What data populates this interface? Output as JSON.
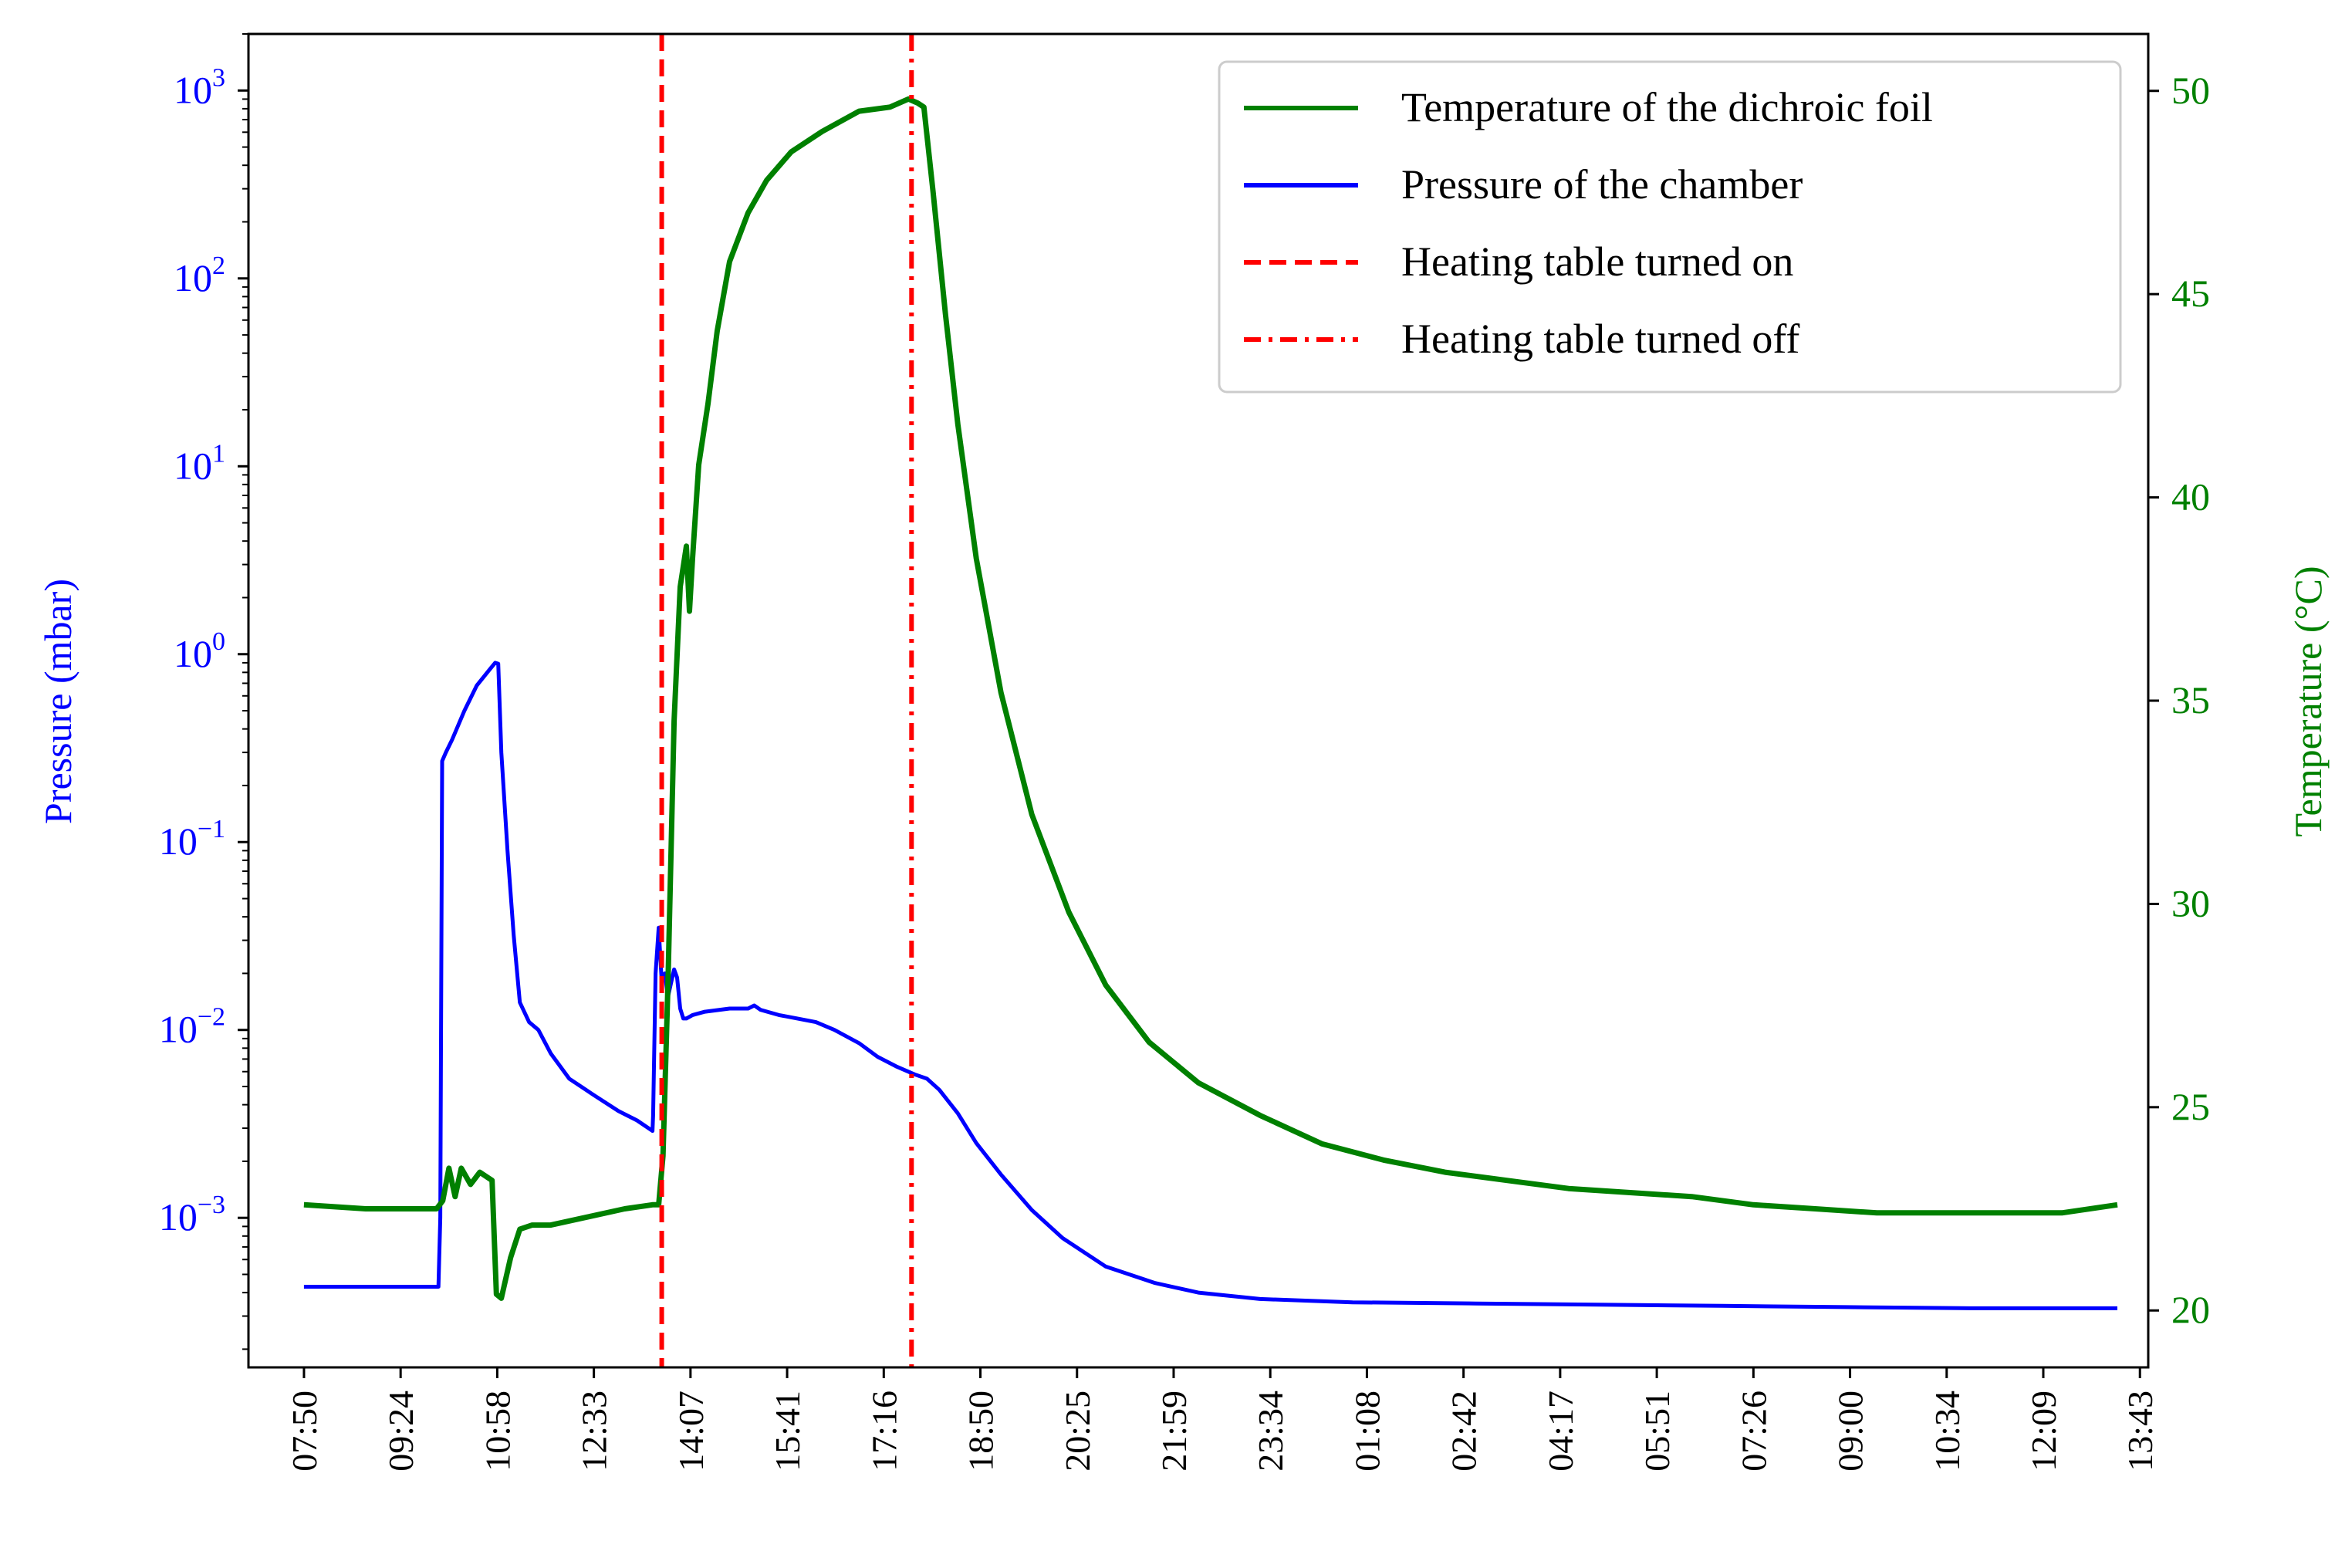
{
  "chart_data": {
    "type": "line",
    "title": "",
    "xlabel": "",
    "ylabel_left": "Pressure (mbar)",
    "ylabel_right": "Temperature (°C)",
    "x_unit": "hours since 07:50 on day 1",
    "x_tick_labels": [
      "07:50",
      "09:24",
      "10:58",
      "12:33",
      "14:07",
      "15:41",
      "17:16",
      "18:50",
      "20:25",
      "21:59",
      "23:34",
      "01:08",
      "02:42",
      "04:17",
      "05:51",
      "07:26",
      "09:00",
      "10:34",
      "12:09",
      "13:43"
    ],
    "x_tick_step_hours": 1.5666,
    "xlim": [
      -0.9,
      29.9
    ],
    "left_axis": {
      "scale": "log",
      "ylim": [
        0.00016,
        2000
      ],
      "ticks": [
        {
          "value": 0.001,
          "base": "10",
          "exp": "−3"
        },
        {
          "value": 0.01,
          "base": "10",
          "exp": "−2"
        },
        {
          "value": 0.1,
          "base": "10",
          "exp": "−1"
        },
        {
          "value": 1,
          "base": "10",
          "exp": "0"
        },
        {
          "value": 10,
          "base": "10",
          "exp": "1"
        },
        {
          "value": 100,
          "base": "10",
          "exp": "2"
        },
        {
          "value": 1000,
          "base": "10",
          "exp": "3"
        }
      ],
      "color": "#0000ff"
    },
    "right_axis": {
      "scale": "linear",
      "ylim": [
        18.6,
        51.4
      ],
      "ticks": [
        20,
        25,
        30,
        35,
        40,
        45,
        50
      ],
      "tick_labels": [
        "20",
        "25",
        "30",
        "35",
        "40",
        "45",
        "50"
      ],
      "color": "#008000"
    },
    "series": [
      {
        "name": "Temperature of the dichroic foil",
        "axis": "right",
        "color": "#008000",
        "style": "solid",
        "x": [
          0,
          1,
          2,
          2.15,
          2.25,
          2.35,
          2.45,
          2.55,
          2.7,
          2.85,
          3.05,
          3.12,
          3.2,
          3.35,
          3.5,
          3.7,
          4,
          4.6,
          5.2,
          5.65,
          5.68,
          5.75,
          5.82,
          5.9,
          6,
          6.1,
          6.2,
          6.25,
          6.3,
          6.4,
          6.55,
          6.7,
          6.9,
          7.2,
          7.5,
          7.9,
          8.4,
          9,
          9.5,
          9.8,
          9.95,
          10.05,
          10.2,
          10.4,
          10.6,
          10.9,
          11.3,
          11.8,
          12.4,
          13,
          13.7,
          14.5,
          15.5,
          16.5,
          17.5,
          18.5,
          19.5,
          20.5,
          21.5,
          22.5,
          23.5,
          24.5,
          25.5,
          26.5,
          27.5,
          28.5,
          29.4
        ],
        "y": [
          22.6,
          22.5,
          22.5,
          22.5,
          22.7,
          23.5,
          22.8,
          23.5,
          23.1,
          23.4,
          23.2,
          20.4,
          20.3,
          21.3,
          22,
          22.1,
          22.1,
          22.3,
          22.5,
          22.6,
          22.6,
          22.6,
          23.8,
          28,
          34.5,
          37.8,
          38.8,
          37.2,
          38.5,
          40.8,
          42.3,
          44.1,
          45.8,
          47,
          47.8,
          48.5,
          49,
          49.5,
          49.6,
          49.8,
          49.7,
          49.6,
          47.5,
          44.5,
          41.8,
          38.5,
          35.2,
          32.2,
          29.8,
          28,
          26.6,
          25.6,
          24.8,
          24.1,
          23.7,
          23.4,
          23.2,
          23,
          22.9,
          22.8,
          22.6,
          22.5,
          22.4,
          22.4,
          22.4,
          22.4,
          22.6
        ]
      },
      {
        "name": "Pressure of the chamber",
        "axis": "left",
        "color": "#0000ff",
        "style": "solid",
        "x": [
          0,
          0.5,
          1,
          1.5,
          2,
          2.18,
          2.21,
          2.24,
          2.3,
          2.4,
          2.6,
          2.8,
          3,
          3.1,
          3.15,
          3.2,
          3.3,
          3.4,
          3.5,
          3.65,
          3.8,
          4,
          4.3,
          4.7,
          5.1,
          5.4,
          5.65,
          5.66,
          5.7,
          5.75,
          5.8,
          5.85,
          5.9,
          6,
          6.05,
          6.1,
          6.15,
          6.2,
          6.3,
          6.5,
          6.9,
          7.2,
          7.3,
          7.4,
          7.7,
          8,
          8.3,
          8.6,
          9,
          9.3,
          9.6,
          9.9,
          10.1,
          10.3,
          10.6,
          10.9,
          11.3,
          11.8,
          12.3,
          13,
          13.8,
          14.5,
          15.5,
          17,
          19,
          21,
          23,
          25,
          27,
          29.4
        ],
        "y": [
          0.00043,
          0.00043,
          0.00043,
          0.00043,
          0.00043,
          0.00043,
          0.001,
          0.27,
          0.3,
          0.35,
          0.5,
          0.68,
          0.82,
          0.9,
          0.89,
          0.3,
          0.09,
          0.032,
          0.014,
          0.011,
          0.01,
          0.0075,
          0.0055,
          0.0045,
          0.0037,
          0.0033,
          0.0029,
          0.0035,
          0.02,
          0.035,
          0.018,
          0.02,
          0.015,
          0.021,
          0.019,
          0.013,
          0.0115,
          0.0115,
          0.012,
          0.0125,
          0.013,
          0.013,
          0.0135,
          0.0128,
          0.012,
          0.0115,
          0.011,
          0.01,
          0.0085,
          0.0072,
          0.0064,
          0.0058,
          0.0055,
          0.0048,
          0.0036,
          0.0025,
          0.0017,
          0.0011,
          0.00078,
          0.00055,
          0.00045,
          0.0004,
          0.00037,
          0.000355,
          0.00035,
          0.000345,
          0.00034,
          0.000335,
          0.00033,
          0.00033
        ]
      }
    ],
    "markers": [
      {
        "name": "Heating table turned on",
        "x": 5.8,
        "color": "#ff0000",
        "style": "dashed"
      },
      {
        "name": "Heating table turned off",
        "x": 9.85,
        "color": "#ff0000",
        "style": "dashdot"
      }
    ],
    "legend": {
      "position": "top-right",
      "entries": [
        {
          "label": "Temperature of the dichroic foil",
          "color": "#008000",
          "style": "solid"
        },
        {
          "label": "Pressure of the chamber",
          "color": "#0000ff",
          "style": "solid"
        },
        {
          "label": "Heating table turned on",
          "color": "#ff0000",
          "style": "dashed"
        },
        {
          "label": "Heating table turned off",
          "color": "#ff0000",
          "style": "dashdot"
        }
      ]
    },
    "grid": false
  }
}
